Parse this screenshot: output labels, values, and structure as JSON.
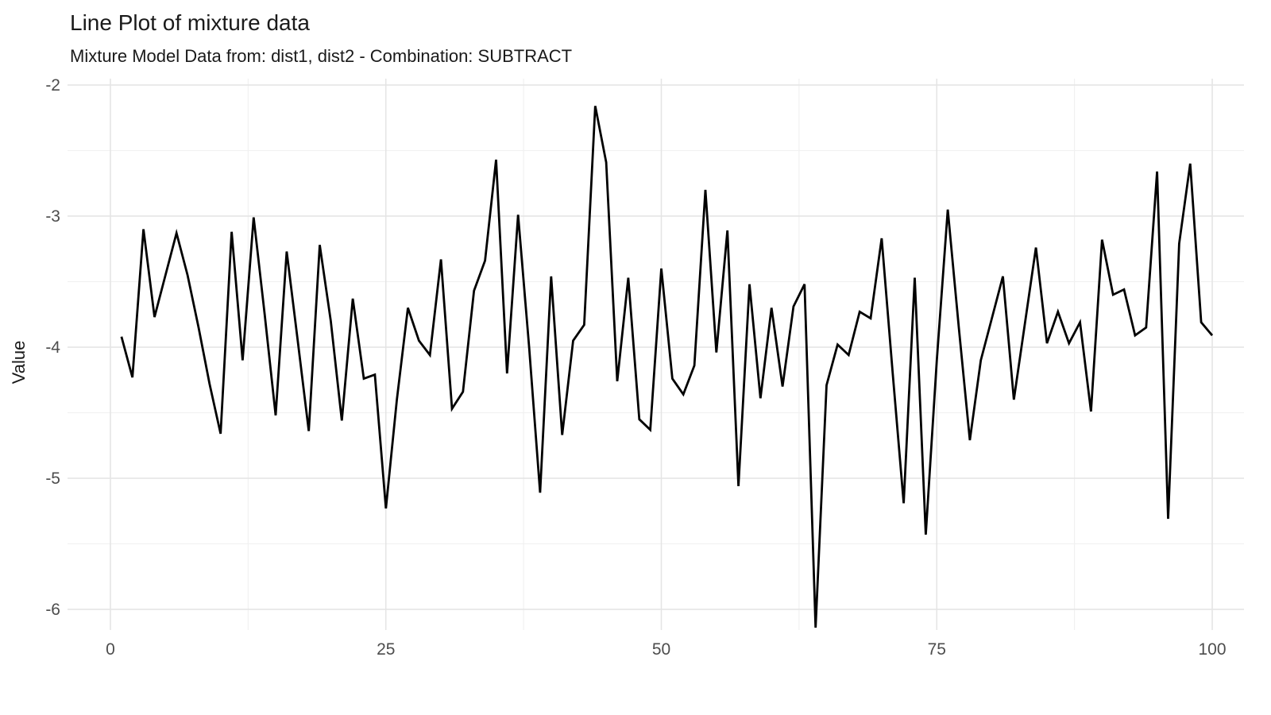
{
  "page": {
    "background": "#ffffff"
  },
  "chart": {
    "title": "Line Plot of mixture data",
    "subtitle": "Mixture Model Data from: dist1, dist2 - Combination: SUBTRACT",
    "ylabel": "Value",
    "line_color": "#000000",
    "grid_major_color": "#e4e4e4",
    "grid_minor_color": "#f1f1f1",
    "tick_label_color": "#4d4d4d",
    "title_color": "#1a1a1a"
  },
  "chart_data": {
    "type": "line",
    "title": "Line Plot of mixture data",
    "subtitle": "Mixture Model Data from: dist1, dist2 - Combination: SUBTRACT",
    "xlabel": "",
    "ylabel": "Value",
    "x_start": 1,
    "x_step": 1,
    "n_points": 100,
    "values": [
      -3.92,
      -4.23,
      -3.1,
      -3.77,
      -3.45,
      -3.13,
      -3.45,
      -3.85,
      -4.28,
      -4.66,
      -3.12,
      -4.1,
      -3.01,
      -3.75,
      -4.52,
      -3.27,
      -3.95,
      -4.64,
      -3.22,
      -3.8,
      -4.56,
      -3.63,
      -4.24,
      -4.21,
      -5.23,
      -4.4,
      -3.7,
      -3.95,
      -4.06,
      -3.33,
      -4.47,
      -4.34,
      -3.57,
      -3.34,
      -2.57,
      -4.2,
      -2.99,
      -4.0,
      -5.11,
      -3.46,
      -4.67,
      -3.95,
      -3.83,
      -2.16,
      -2.59,
      -4.26,
      -3.47,
      -4.55,
      -4.63,
      -3.4,
      -4.24,
      -4.36,
      -4.14,
      -2.8,
      -4.04,
      -3.11,
      -5.06,
      -3.52,
      -4.39,
      -3.7,
      -4.3,
      -3.69,
      -3.52,
      -6.14,
      -4.29,
      -3.98,
      -4.06,
      -3.73,
      -3.78,
      -3.17,
      -4.2,
      -5.19,
      -3.47,
      -5.43,
      -4.1,
      -2.95,
      -3.85,
      -4.71,
      -4.1,
      -3.78,
      -3.46,
      -4.4,
      -3.82,
      -3.24,
      -3.97,
      -3.73,
      -3.97,
      -3.81,
      -4.49,
      -3.18,
      -3.6,
      -3.56,
      -3.91,
      -3.85,
      -2.66,
      -5.31,
      -3.21,
      -2.6,
      -3.81,
      -3.91
    ],
    "x_ticks": [
      0,
      25,
      50,
      75,
      100
    ],
    "x_minor_ticks": [
      12.5,
      37.5,
      62.5,
      87.5
    ],
    "y_ticks": [
      -2,
      -3,
      -4,
      -5,
      -6
    ],
    "y_minor_ticks": [
      -2.5,
      -3.5,
      -4.5,
      -5.5
    ],
    "xlim": [
      -4,
      103
    ],
    "ylim": [
      -6.2,
      -1.95
    ],
    "grid": true,
    "legend": false
  }
}
